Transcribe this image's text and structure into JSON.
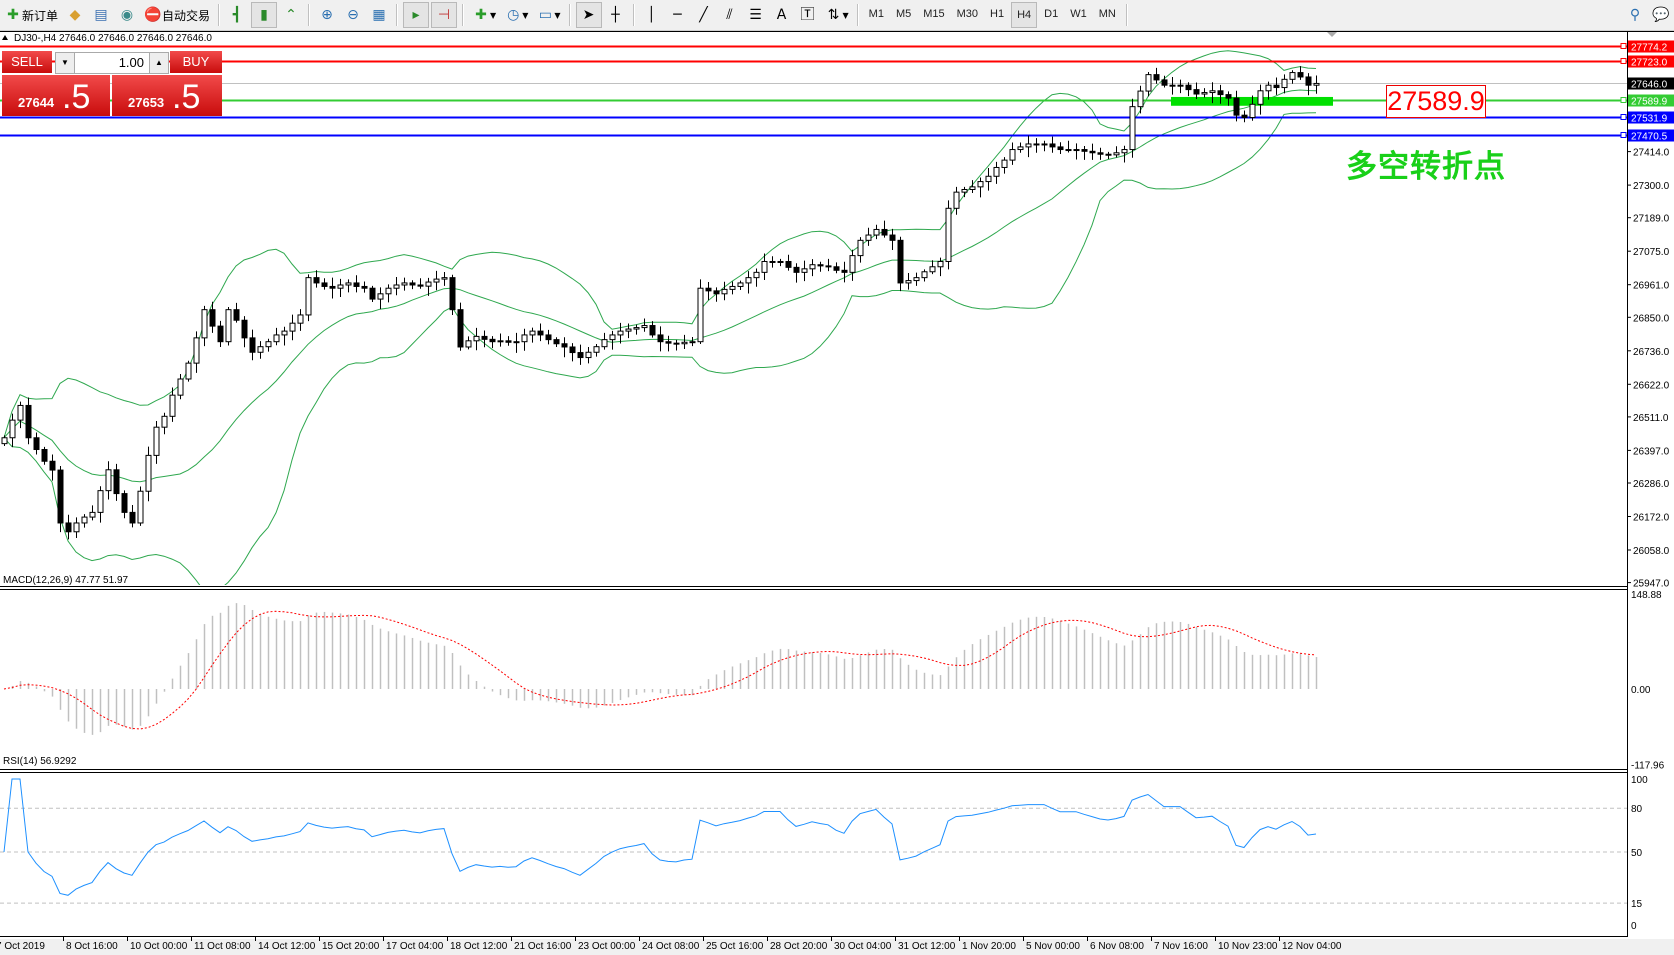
{
  "toolbar": {
    "new_order": "新订单",
    "auto_trading": "自动交易",
    "timeframes": [
      "M1",
      "M5",
      "M15",
      "M30",
      "H1",
      "H4",
      "D1",
      "W1",
      "MN"
    ],
    "active_timeframe": "H4",
    "text_tool": "A"
  },
  "chart": {
    "title": "DJ30-,H4  27646.0 27646.0 27646.0 27646.0",
    "trade_panel": {
      "sell_label": "SELL",
      "buy_label": "BUY",
      "lot": "1.00",
      "sell_main": "27644",
      "sell_frac": ".5",
      "buy_main": "27653",
      "buy_frac": ".5"
    },
    "annotation_price": "27589.9",
    "annotation_text": "多空转折点",
    "colors": {
      "up_candle": "#ffffff",
      "down_candle": "#000000",
      "bands": "#2fa84f",
      "macd_hist": "#c0c0c0",
      "macd_signal": "#ff0000",
      "rsi": "#1e90ff",
      "zone": "#00e000"
    }
  },
  "chart_data": {
    "type": "candlestick",
    "symbol": "DJ30-",
    "timeframe": "H4",
    "price_ticks": [
      "27414.0",
      "27300.0",
      "27189.0",
      "27075.0",
      "26961.0",
      "26850.0",
      "26736.0",
      "26622.0",
      "26511.0",
      "26397.0",
      "26286.0",
      "26172.0",
      "26058.0",
      "25947.0"
    ],
    "levels": [
      {
        "price": "27774.2",
        "color": "#ff0000"
      },
      {
        "price": "27723.0",
        "color": "#ff0000"
      },
      {
        "price": "27646.0",
        "color": "#000000"
      },
      {
        "price": "27589.9",
        "color": "#33cc33"
      },
      {
        "price": "27531.9",
        "color": "#0000ff"
      },
      {
        "price": "27470.5",
        "color": "#0000ff"
      }
    ],
    "zone": {
      "from_label": "7 Nov 16:00",
      "price_low": 27570,
      "price_high": 27600
    },
    "time_labels": [
      "7 Oct 2019",
      "8 Oct 16:00",
      "10 Oct 00:00",
      "11 Oct 08:00",
      "14 Oct 12:00",
      "15 Oct 20:00",
      "17 Oct 04:00",
      "18 Oct 12:00",
      "21 Oct 16:00",
      "23 Oct 00:00",
      "24 Oct 08:00",
      "25 Oct 16:00",
      "28 Oct 20:00",
      "30 Oct 04:00",
      "31 Oct 12:00",
      "1 Nov 20:00",
      "5 Nov 00:00",
      "6 Nov 08:00",
      "7 Nov 16:00",
      "10 Nov 23:00",
      "12 Nov 04:00"
    ],
    "closes": [
      26440,
      26500,
      26550,
      26440,
      26400,
      26360,
      26330,
      26150,
      26120,
      26150,
      26170,
      26186,
      26260,
      26331,
      26250,
      26186,
      26150,
      26258,
      26380,
      26476,
      26513,
      26585,
      26640,
      26694,
      26780,
      26876,
      26820,
      26767,
      26876,
      26840,
      26780,
      26731,
      26750,
      26767,
      26790,
      26803,
      26830,
      26858,
      26985,
      26967,
      26955,
      26949,
      26960,
      26967,
      26955,
      26949,
      26912,
      26930,
      26949,
      26960,
      26967,
      26960,
      26956,
      26970,
      26980,
      26985,
      26876,
      26749,
      26770,
      26785,
      26775,
      26767,
      26770,
      26765,
      26767,
      26790,
      26803,
      26790,
      26774,
      26760,
      26749,
      26730,
      26713,
      26731,
      26750,
      26774,
      26790,
      26803,
      26810,
      26815,
      26822,
      26790,
      26767,
      26762,
      26760,
      26765,
      26767,
      26949,
      26940,
      26930,
      26945,
      26955,
      26967,
      26985,
      27003,
      27040,
      27040,
      27040,
      27020,
      27003,
      27015,
      27029,
      27025,
      27022,
      27010,
      27003,
      27060,
      27112,
      27130,
      27149,
      27130,
      27112,
      26967,
      26975,
      26985,
      27005,
      27022,
      27040,
      27221,
      27276,
      27285,
      27294,
      27312,
      27330,
      27360,
      27385,
      27421,
      27430,
      27440,
      27440,
      27440,
      27430,
      27421,
      27421,
      27421,
      27415,
      27410,
      27405,
      27403,
      27410,
      27421,
      27567,
      27620,
      27676,
      27658,
      27640,
      27640,
      27640,
      27625,
      27610,
      27615,
      27621,
      27608,
      27596,
      27538,
      27530,
      27575,
      27621,
      27640,
      27632,
      27660,
      27683,
      27668,
      27640,
      27646
    ],
    "macd": {
      "label": "MACD(12,26,9) 47.77 51.97",
      "ticks": [
        "148.88",
        "0.00",
        "-117.96"
      ],
      "ylim": [
        -117.96,
        148.88
      ]
    },
    "rsi": {
      "label": "RSI(14) 56.9292",
      "ticks": [
        "100",
        "80",
        "50",
        "15",
        "0"
      ],
      "levels": [
        80,
        50,
        15
      ],
      "ylim": [
        0,
        100
      ]
    }
  }
}
